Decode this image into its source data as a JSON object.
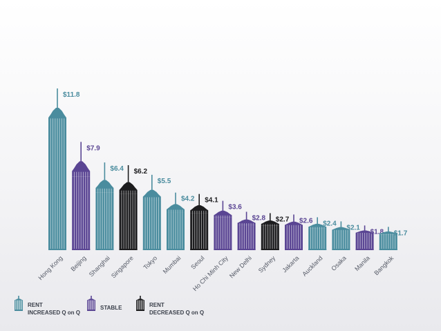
{
  "colors": {
    "increased": "#4a8c9e",
    "stable": "#5a4593",
    "decreased": "#1c1c1e"
  },
  "chart_data": {
    "type": "bar",
    "categories": [
      "Hong Kong",
      "Beijing",
      "Shanghai",
      "Singapore",
      "Tokyo",
      "Mumbai",
      "Seoul",
      "Ho Chi Minh City",
      "New Delhi",
      "Sydney",
      "Jakarta",
      "Auckland",
      "Osaka",
      "Manila",
      "Bangkok"
    ],
    "values": [
      11.8,
      7.9,
      6.4,
      6.2,
      5.5,
      4.2,
      4.1,
      3.6,
      2.8,
      2.7,
      2.6,
      2.4,
      2.1,
      1.8,
      1.7
    ],
    "value_labels": [
      "$11.8",
      "$7.9",
      "$6.4",
      "$6.2",
      "$5.5",
      "$4.2",
      "$4.1",
      "$3.6",
      "$2.8",
      "$2.7",
      "$2.6",
      "$2.4",
      "$2.1",
      "$1.8",
      "$1.7"
    ],
    "status": [
      "increased",
      "stable",
      "increased",
      "decreased",
      "increased",
      "increased",
      "decreased",
      "stable",
      "stable",
      "decreased",
      "stable",
      "increased",
      "increased",
      "stable",
      "increased"
    ],
    "title": "",
    "xlabel": "",
    "ylabel": ""
  },
  "legend": {
    "items": [
      {
        "key": "increased",
        "label": "RENT\nINCREASED Q on Q",
        "icon": "building-icon-teal"
      },
      {
        "key": "stable",
        "label": "STABLE",
        "icon": "building-icon-purple"
      },
      {
        "key": "decreased",
        "label": "RENT\nDECREASED Q on Q",
        "icon": "building-icon-black"
      }
    ]
  }
}
